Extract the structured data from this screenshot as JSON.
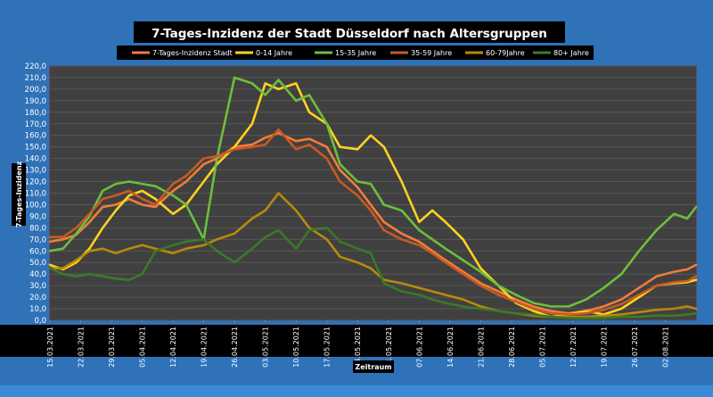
{
  "chart_data": {
    "type": "line",
    "title": "7-Tages-Inzidenz der Stadt Düsseldorf nach Altersgruppen",
    "xlabel": "Zeitraum",
    "ylabel": "7-Tages-Inzidenz",
    "ylim": [
      0,
      220
    ],
    "ytick_step": 10,
    "grid": true,
    "legend_position": "top",
    "x_tick_labels": [
      "15.03.2021",
      "22.03.2021",
      "29.03.2021",
      "05.04.2021",
      "12.04.2021",
      "19.04.2021",
      "26.04.2021",
      "03.05.2021",
      "10.05.2021",
      "17.05.2021",
      "24.05.2021",
      "31.05.2021",
      "07.06.2021",
      "14.06.2021",
      "21.06.2021",
      "28.06.2021",
      "05.07.2021",
      "12.07.2021",
      "19.07.2021",
      "26.07.2021",
      "02.08.2021"
    ],
    "x_range_days": [
      0,
      147
    ],
    "series": [
      {
        "name": "7-Tages-Inzidenz Stadt",
        "color": "#f07d3a",
        "points": [
          [
            0,
            68
          ],
          [
            3,
            70
          ],
          [
            6,
            74
          ],
          [
            9,
            85
          ],
          [
            12,
            98
          ],
          [
            15,
            100
          ],
          [
            18,
            105
          ],
          [
            21,
            100
          ],
          [
            24,
            98
          ],
          [
            28,
            112
          ],
          [
            31,
            120
          ],
          [
            35,
            135
          ],
          [
            38,
            140
          ],
          [
            42,
            150
          ],
          [
            46,
            152
          ],
          [
            49,
            158
          ],
          [
            52,
            162
          ],
          [
            56,
            155
          ],
          [
            59,
            157
          ],
          [
            63,
            150
          ],
          [
            66,
            130
          ],
          [
            70,
            115
          ],
          [
            73,
            100
          ],
          [
            76,
            85
          ],
          [
            80,
            75
          ],
          [
            84,
            68
          ],
          [
            87,
            60
          ],
          [
            90,
            52
          ],
          [
            94,
            42
          ],
          [
            98,
            32
          ],
          [
            102,
            25
          ],
          [
            106,
            18
          ],
          [
            110,
            12
          ],
          [
            114,
            8
          ],
          [
            118,
            6
          ],
          [
            122,
            8
          ],
          [
            126,
            12
          ],
          [
            130,
            18
          ],
          [
            134,
            28
          ],
          [
            138,
            38
          ],
          [
            142,
            42
          ],
          [
            145,
            44
          ],
          [
            147,
            48
          ]
        ]
      },
      {
        "name": "0-14 Jahre",
        "color": "#ffd21f",
        "points": [
          [
            0,
            48
          ],
          [
            3,
            44
          ],
          [
            6,
            50
          ],
          [
            9,
            62
          ],
          [
            12,
            80
          ],
          [
            15,
            95
          ],
          [
            18,
            108
          ],
          [
            21,
            112
          ],
          [
            24,
            105
          ],
          [
            28,
            92
          ],
          [
            31,
            100
          ],
          [
            35,
            120
          ],
          [
            38,
            135
          ],
          [
            42,
            150
          ],
          [
            46,
            170
          ],
          [
            49,
            205
          ],
          [
            52,
            200
          ],
          [
            56,
            205
          ],
          [
            59,
            180
          ],
          [
            63,
            170
          ],
          [
            66,
            150
          ],
          [
            70,
            148
          ],
          [
            73,
            160
          ],
          [
            76,
            150
          ],
          [
            80,
            120
          ],
          [
            84,
            85
          ],
          [
            87,
            95
          ],
          [
            90,
            85
          ],
          [
            94,
            70
          ],
          [
            98,
            45
          ],
          [
            102,
            30
          ],
          [
            106,
            15
          ],
          [
            110,
            8
          ],
          [
            114,
            3
          ],
          [
            118,
            5
          ],
          [
            122,
            8
          ],
          [
            126,
            5
          ],
          [
            130,
            10
          ],
          [
            134,
            20
          ],
          [
            138,
            30
          ],
          [
            142,
            32
          ],
          [
            145,
            33
          ],
          [
            147,
            35
          ]
        ]
      },
      {
        "name": "15-35 Jahre",
        "color": "#6cbf3c",
        "points": [
          [
            0,
            60
          ],
          [
            3,
            62
          ],
          [
            6,
            75
          ],
          [
            9,
            90
          ],
          [
            12,
            112
          ],
          [
            15,
            118
          ],
          [
            18,
            120
          ],
          [
            21,
            118
          ],
          [
            24,
            116
          ],
          [
            28,
            108
          ],
          [
            31,
            100
          ],
          [
            35,
            70
          ],
          [
            38,
            140
          ],
          [
            42,
            210
          ],
          [
            46,
            205
          ],
          [
            49,
            195
          ],
          [
            52,
            208
          ],
          [
            56,
            190
          ],
          [
            59,
            195
          ],
          [
            63,
            170
          ],
          [
            66,
            135
          ],
          [
            70,
            120
          ],
          [
            73,
            118
          ],
          [
            76,
            100
          ],
          [
            80,
            95
          ],
          [
            84,
            78
          ],
          [
            87,
            70
          ],
          [
            90,
            62
          ],
          [
            94,
            52
          ],
          [
            98,
            42
          ],
          [
            102,
            30
          ],
          [
            106,
            22
          ],
          [
            110,
            15
          ],
          [
            114,
            12
          ],
          [
            118,
            12
          ],
          [
            122,
            18
          ],
          [
            126,
            28
          ],
          [
            130,
            40
          ],
          [
            134,
            60
          ],
          [
            138,
            78
          ],
          [
            142,
            92
          ],
          [
            145,
            88
          ],
          [
            147,
            98
          ]
        ]
      },
      {
        "name": "35-59 Jahre",
        "color": "#c85a24",
        "points": [
          [
            0,
            72
          ],
          [
            3,
            72
          ],
          [
            6,
            80
          ],
          [
            9,
            92
          ],
          [
            12,
            105
          ],
          [
            15,
            108
          ],
          [
            18,
            112
          ],
          [
            21,
            105
          ],
          [
            24,
            100
          ],
          [
            28,
            118
          ],
          [
            31,
            125
          ],
          [
            35,
            140
          ],
          [
            38,
            142
          ],
          [
            42,
            148
          ],
          [
            46,
            150
          ],
          [
            49,
            152
          ],
          [
            52,
            165
          ],
          [
            56,
            148
          ],
          [
            59,
            152
          ],
          [
            63,
            140
          ],
          [
            66,
            120
          ],
          [
            70,
            108
          ],
          [
            73,
            95
          ],
          [
            76,
            78
          ],
          [
            80,
            70
          ],
          [
            84,
            65
          ],
          [
            87,
            58
          ],
          [
            90,
            50
          ],
          [
            94,
            40
          ],
          [
            98,
            30
          ],
          [
            102,
            22
          ],
          [
            106,
            16
          ],
          [
            110,
            10
          ],
          [
            114,
            6
          ],
          [
            118,
            5
          ],
          [
            122,
            6
          ],
          [
            126,
            9
          ],
          [
            130,
            14
          ],
          [
            134,
            22
          ],
          [
            138,
            30
          ],
          [
            142,
            33
          ],
          [
            145,
            34
          ],
          [
            147,
            38
          ]
        ]
      },
      {
        "name": "60-79Jahre",
        "color": "#b88a0a",
        "points": [
          [
            0,
            45
          ],
          [
            3,
            45
          ],
          [
            6,
            52
          ],
          [
            9,
            60
          ],
          [
            12,
            62
          ],
          [
            15,
            58
          ],
          [
            18,
            62
          ],
          [
            21,
            65
          ],
          [
            24,
            62
          ],
          [
            28,
            58
          ],
          [
            31,
            62
          ],
          [
            35,
            65
          ],
          [
            38,
            70
          ],
          [
            42,
            75
          ],
          [
            46,
            88
          ],
          [
            49,
            95
          ],
          [
            52,
            110
          ],
          [
            56,
            95
          ],
          [
            59,
            80
          ],
          [
            63,
            70
          ],
          [
            66,
            55
          ],
          [
            70,
            50
          ],
          [
            73,
            45
          ],
          [
            76,
            35
          ],
          [
            80,
            32
          ],
          [
            84,
            28
          ],
          [
            87,
            25
          ],
          [
            90,
            22
          ],
          [
            94,
            18
          ],
          [
            98,
            12
          ],
          [
            102,
            8
          ],
          [
            106,
            6
          ],
          [
            110,
            4
          ],
          [
            114,
            3
          ],
          [
            118,
            3
          ],
          [
            122,
            3
          ],
          [
            126,
            4
          ],
          [
            130,
            5
          ],
          [
            134,
            7
          ],
          [
            138,
            9
          ],
          [
            142,
            10
          ],
          [
            145,
            12
          ],
          [
            147,
            10
          ]
        ]
      },
      {
        "name": "80+ Jahre",
        "color": "#3a7a28",
        "points": [
          [
            0,
            45
          ],
          [
            3,
            40
          ],
          [
            6,
            38
          ],
          [
            9,
            40
          ],
          [
            12,
            38
          ],
          [
            15,
            36
          ],
          [
            18,
            35
          ],
          [
            21,
            40
          ],
          [
            24,
            60
          ],
          [
            28,
            65
          ],
          [
            31,
            68
          ],
          [
            35,
            70
          ],
          [
            38,
            60
          ],
          [
            42,
            50
          ],
          [
            46,
            62
          ],
          [
            49,
            72
          ],
          [
            52,
            78
          ],
          [
            56,
            62
          ],
          [
            59,
            78
          ],
          [
            63,
            80
          ],
          [
            66,
            68
          ],
          [
            70,
            62
          ],
          [
            73,
            58
          ],
          [
            76,
            32
          ],
          [
            80,
            25
          ],
          [
            84,
            22
          ],
          [
            87,
            18
          ],
          [
            90,
            15
          ],
          [
            94,
            12
          ],
          [
            98,
            10
          ],
          [
            102,
            8
          ],
          [
            106,
            6
          ],
          [
            110,
            5
          ],
          [
            114,
            3
          ],
          [
            118,
            2
          ],
          [
            122,
            2
          ],
          [
            126,
            2
          ],
          [
            130,
            3
          ],
          [
            134,
            3
          ],
          [
            138,
            4
          ],
          [
            142,
            4
          ],
          [
            145,
            5
          ],
          [
            147,
            6
          ]
        ]
      }
    ]
  }
}
